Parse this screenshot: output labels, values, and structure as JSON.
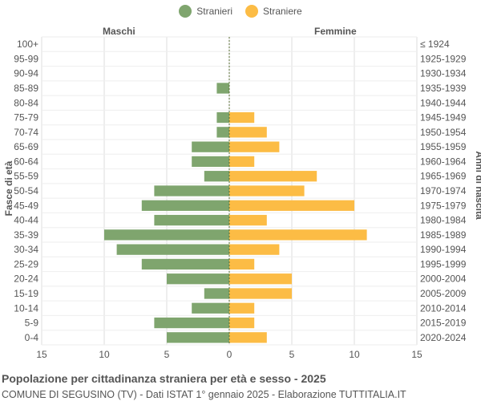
{
  "legend": {
    "male_label": "Stranieri",
    "female_label": "Straniere"
  },
  "colors": {
    "male": "#7fa56e",
    "female": "#fcbc45",
    "grid": "#dddddd",
    "center_line": "#556b2f"
  },
  "side_labels": {
    "left": "Maschi",
    "right": "Femmine"
  },
  "footer": {
    "title": "Popolazione per cittadinanza straniera per età e sesso - 2025",
    "subtitle": "COMUNE DI SEGUSINO (TV) - Dati ISTAT 1° gennaio 2025 - Elaborazione TUTTITALIA.IT"
  },
  "chart_data": {
    "type": "bar",
    "orientation": "horizontal",
    "ylabel_left": "Fasce di età",
    "ylabel_right": "Anni di nascita",
    "categories": [
      "100+",
      "95-99",
      "90-94",
      "85-89",
      "80-84",
      "75-79",
      "70-74",
      "65-69",
      "60-64",
      "55-59",
      "50-54",
      "45-49",
      "40-44",
      "35-39",
      "30-34",
      "25-29",
      "20-24",
      "15-19",
      "10-14",
      "5-9",
      "0-4"
    ],
    "birth_years": [
      "≤ 1924",
      "1925-1929",
      "1930-1934",
      "1935-1939",
      "1940-1944",
      "1945-1949",
      "1950-1954",
      "1955-1959",
      "1960-1964",
      "1965-1969",
      "1970-1974",
      "1975-1979",
      "1980-1984",
      "1985-1989",
      "1990-1994",
      "1995-1999",
      "2000-2004",
      "2005-2009",
      "2010-2014",
      "2015-2019",
      "2020-2024"
    ],
    "series": [
      {
        "name": "Stranieri",
        "values": [
          0,
          0,
          0,
          1,
          0,
          1,
          1,
          3,
          3,
          2,
          6,
          7,
          6,
          10,
          9,
          7,
          5,
          2,
          3,
          6,
          5
        ]
      },
      {
        "name": "Straniere",
        "values": [
          0,
          0,
          0,
          0,
          0,
          2,
          3,
          4,
          2,
          7,
          6,
          10,
          3,
          11,
          4,
          2,
          5,
          5,
          2,
          2,
          3
        ]
      }
    ],
    "xlim": [
      -15,
      15
    ],
    "xticks": [
      -15,
      -10,
      -5,
      0,
      5,
      10,
      15
    ],
    "xtick_labels": [
      "15",
      "10",
      "5",
      "0",
      "5",
      "10",
      "15"
    ],
    "grid": true
  }
}
